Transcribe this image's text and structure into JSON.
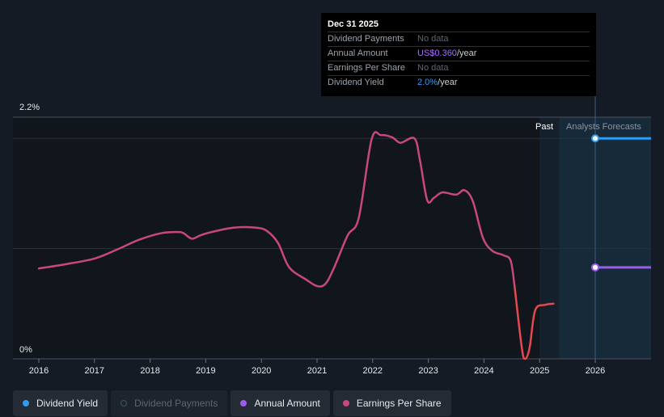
{
  "tooltip": {
    "date": "Dec 31 2025",
    "rows": [
      {
        "label": "Dividend Payments",
        "value": "No data"
      },
      {
        "label": "Annual Amount",
        "value": "US$0.360",
        "unit": "/year"
      },
      {
        "label": "Earnings Per Share",
        "value": "No data"
      },
      {
        "label": "Dividend Yield",
        "value": "2.0%",
        "unit": "/year"
      }
    ]
  },
  "regions": {
    "past": "Past",
    "forecast": "Analysts Forecasts"
  },
  "legend": [
    {
      "label": "Dividend Yield",
      "color": "#2f9cf2",
      "active": true
    },
    {
      "label": "Dividend Payments",
      "color": "#3c5560",
      "active": false
    },
    {
      "label": "Annual Amount",
      "color": "#9d5cf0",
      "active": true
    },
    {
      "label": "Earnings Per Share",
      "color": "#c8487e",
      "active": true
    }
  ],
  "chart_data": {
    "type": "line",
    "ylabel_top": "2.2%",
    "ylabel_bottom": "0%",
    "xlim": [
      2015.6,
      2027.0
    ],
    "ylim": [
      0,
      2.2
    ],
    "x_ticks": [
      "2016",
      "2017",
      "2018",
      "2019",
      "2020",
      "2021",
      "2022",
      "2023",
      "2024",
      "2025",
      "2026"
    ],
    "past_forecast_boundary": 2025.35,
    "series": [
      {
        "name": "Earnings Per Share",
        "color": "#c8487e",
        "points": [
          [
            2016.0,
            0.82
          ],
          [
            2016.5,
            0.86
          ],
          [
            2017.0,
            0.91
          ],
          [
            2017.4,
            0.99
          ],
          [
            2017.8,
            1.08
          ],
          [
            2018.2,
            1.14
          ],
          [
            2018.5,
            1.15
          ],
          [
            2018.6,
            1.14
          ],
          [
            2018.75,
            1.09
          ],
          [
            2018.9,
            1.12
          ],
          [
            2019.1,
            1.15
          ],
          [
            2019.5,
            1.19
          ],
          [
            2019.9,
            1.19
          ],
          [
            2020.1,
            1.16
          ],
          [
            2020.3,
            1.05
          ],
          [
            2020.5,
            0.83
          ],
          [
            2020.8,
            0.72
          ],
          [
            2021.0,
            0.66
          ],
          [
            2021.15,
            0.68
          ],
          [
            2021.3,
            0.82
          ],
          [
            2021.55,
            1.12
          ],
          [
            2021.75,
            1.28
          ],
          [
            2021.98,
            1.99
          ],
          [
            2022.15,
            2.03
          ],
          [
            2022.35,
            2.01
          ],
          [
            2022.5,
            1.96
          ],
          [
            2022.75,
            2.0
          ],
          [
            2022.85,
            1.8
          ],
          [
            2022.98,
            1.44
          ],
          [
            2023.1,
            1.46
          ],
          [
            2023.25,
            1.51
          ],
          [
            2023.5,
            1.49
          ],
          [
            2023.65,
            1.53
          ],
          [
            2023.8,
            1.43
          ],
          [
            2023.98,
            1.1
          ],
          [
            2024.15,
            0.98
          ],
          [
            2024.35,
            0.94
          ],
          [
            2024.48,
            0.89
          ],
          [
            2024.55,
            0.66
          ]
        ]
      },
      {
        "name": "Earnings Per Share",
        "color": "#e5494f",
        "points": [
          [
            2024.55,
            0.66
          ],
          [
            2024.68,
            0.1
          ],
          [
            2024.74,
            0.0
          ],
          [
            2024.82,
            0.1
          ],
          [
            2024.92,
            0.44
          ],
          [
            2025.1,
            0.49
          ],
          [
            2025.25,
            0.5
          ]
        ]
      }
    ],
    "forecast_points": [
      {
        "name": "Dividend Yield",
        "x": 2026.0,
        "y": 2.0,
        "color": "#2f9cf2"
      },
      {
        "name": "Annual Amount",
        "x": 2026.0,
        "y": 0.83,
        "color": "#9d5cf0"
      }
    ]
  }
}
